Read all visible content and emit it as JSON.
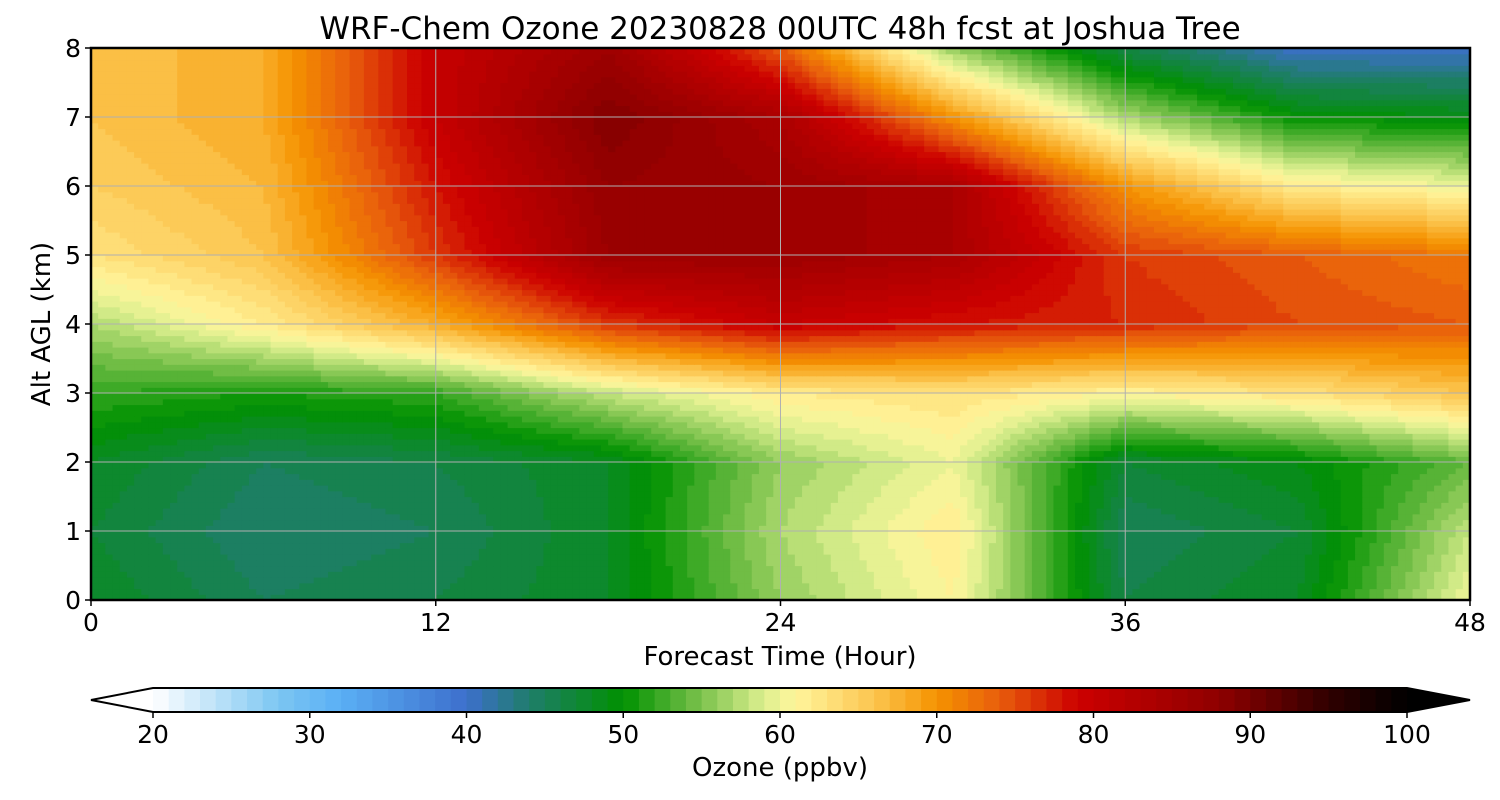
{
  "chart_data": {
    "type": "heatmap",
    "title": "WRF-Chem Ozone  20230828 00UTC 48h fcst at Joshua Tree",
    "xlabel": "Forecast Time (Hour)",
    "ylabel": "Alt AGL (km)",
    "xlim": [
      0,
      48
    ],
    "ylim": [
      0,
      8
    ],
    "xticks": [
      "0",
      "12",
      "24",
      "36",
      "48"
    ],
    "yticks": [
      "0",
      "1",
      "2",
      "3",
      "4",
      "5",
      "6",
      "7",
      "8"
    ],
    "grid": true,
    "x": [
      0,
      6,
      12,
      18,
      24,
      30,
      36,
      42,
      48
    ],
    "y": [
      0,
      1,
      2,
      3,
      4,
      5,
      6,
      7,
      8
    ],
    "z": [
      [
        48,
        45,
        46,
        48,
        56,
        61,
        46,
        48,
        60
      ],
      [
        47,
        44,
        45,
        48,
        57,
        62,
        45,
        47,
        58
      ],
      [
        48,
        45,
        46,
        48,
        56,
        60,
        47,
        49,
        54
      ],
      [
        52,
        51,
        52,
        58,
        62,
        63,
        61,
        63,
        66
      ],
      [
        57,
        62,
        68,
        76,
        80,
        78,
        77,
        75,
        74
      ],
      [
        63,
        66,
        76,
        86,
        86,
        84,
        76,
        74,
        72
      ],
      [
        65,
        67,
        78,
        87,
        86,
        84,
        70,
        62,
        60
      ],
      [
        66,
        68,
        80,
        89,
        84,
        70,
        57,
        50,
        49
      ],
      [
        66,
        68,
        80,
        86,
        74,
        56,
        46,
        40,
        40
      ]
    ],
    "colorbar": {
      "label": "Ozone  (ppbv)",
      "min": 20,
      "max": 100,
      "step": 1,
      "ticks": [
        "20",
        "30",
        "40",
        "50",
        "60",
        "70",
        "80",
        "90",
        "100"
      ],
      "extend": "both",
      "color_stops": [
        {
          "value": 20,
          "color": "#ffffff"
        },
        {
          "value": 28,
          "color": "#7cc6f2"
        },
        {
          "value": 32,
          "color": "#5aaff5"
        },
        {
          "value": 40,
          "color": "#3d6fcc"
        },
        {
          "value": 44,
          "color": "#1f7d6b"
        },
        {
          "value": 50,
          "color": "#009100"
        },
        {
          "value": 55,
          "color": "#7cc24d"
        },
        {
          "value": 59,
          "color": "#ddf08f"
        },
        {
          "value": 61,
          "color": "#fff59c"
        },
        {
          "value": 66,
          "color": "#fcc54f"
        },
        {
          "value": 70,
          "color": "#f59300"
        },
        {
          "value": 74,
          "color": "#e85d0c"
        },
        {
          "value": 79,
          "color": "#cc0000"
        },
        {
          "value": 88,
          "color": "#8f0000"
        },
        {
          "value": 95,
          "color": "#300000"
        },
        {
          "value": 100,
          "color": "#000000"
        }
      ]
    }
  }
}
